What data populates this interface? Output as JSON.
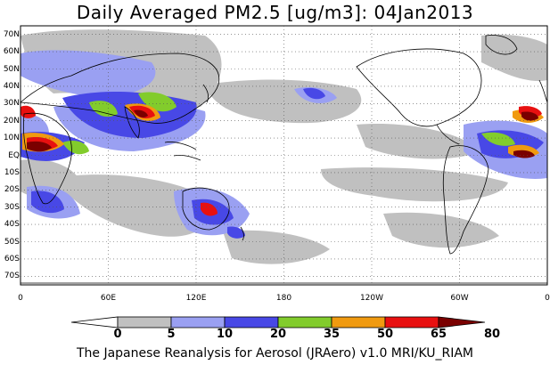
{
  "title": "Daily Averaged PM2.5 [ug/m3]: 04Jan2013",
  "footer": "The Japanese Reanalysis for Aerosol (JRAero) v1.0 MRI/KU_RIAM",
  "map": {
    "projection": "equirectangular",
    "center_longitude": 180,
    "lat_range": [
      -75,
      75
    ],
    "lat_ticks": [
      "70N",
      "60N",
      "50N",
      "40N",
      "30N",
      "20N",
      "10N",
      "EQ",
      "10S",
      "20S",
      "30S",
      "40S",
      "50S",
      "60S",
      "70S"
    ],
    "lon_ticks": [
      "0",
      "60E",
      "120E",
      "180",
      "120W",
      "60W",
      "0"
    ],
    "gridlines": "dotted"
  },
  "colorbar": {
    "levels": [
      "0",
      "5",
      "10",
      "20",
      "35",
      "50",
      "65",
      "80"
    ],
    "colors": [
      "#ffffff",
      "#c0c0c0",
      "#9aa0f2",
      "#4848e6",
      "#82cc2c",
      "#f09a10",
      "#e81010",
      "#7a0000"
    ]
  },
  "colors": {
    "background": "#ffffff",
    "coastline": "#000000"
  }
}
